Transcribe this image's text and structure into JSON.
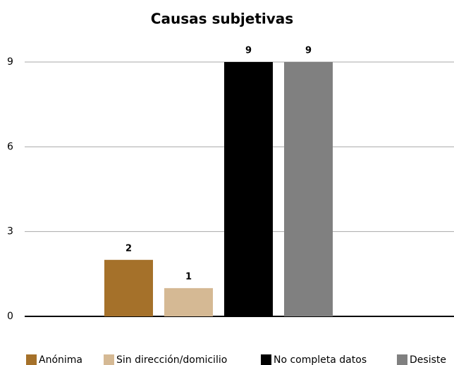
{
  "chart_data": {
    "type": "bar",
    "title": "Causas subjetivas",
    "categories": [
      null
    ],
    "series": [
      {
        "name": "Anónima",
        "color": "#a5712a",
        "values": [
          2
        ]
      },
      {
        "name": "Sin dirección/domicilio",
        "color": "#d5b994",
        "values": [
          1
        ]
      },
      {
        "name": "No completa datos",
        "color": "#000000",
        "values": [
          9
        ]
      },
      {
        "name": "Desiste",
        "color": "#808080",
        "values": [
          9
        ]
      }
    ],
    "ylim": [
      0,
      9
    ],
    "yticks": [
      0,
      3,
      6,
      9
    ],
    "grid": true,
    "legend": "bottom"
  }
}
